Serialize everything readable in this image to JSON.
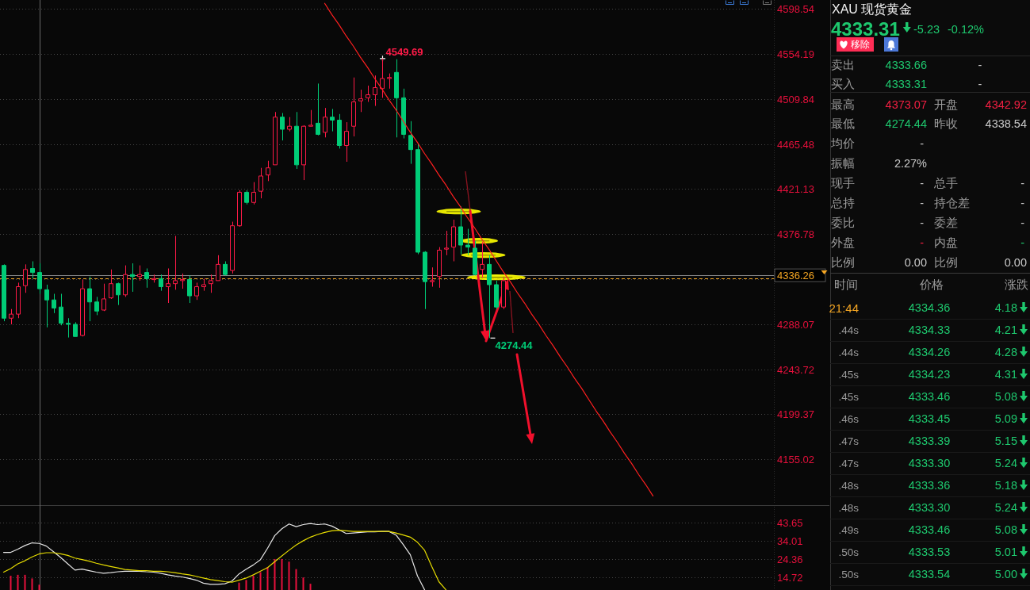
{
  "chart_data": [
    {
      "type": "candlestick",
      "categories": [
        null,
        null,
        null,
        null,
        null,
        null,
        null,
        null,
        null,
        null,
        null,
        null,
        null,
        null,
        null,
        null,
        null,
        null,
        null,
        null,
        null,
        null,
        null,
        null,
        null,
        null,
        null,
        null,
        null,
        null,
        null,
        null,
        null,
        null,
        null,
        null,
        null,
        null,
        null,
        null,
        null,
        null,
        null,
        null,
        null,
        null,
        null,
        null,
        null,
        null,
        null,
        null,
        null,
        null,
        null,
        null,
        null,
        null,
        null,
        null,
        null,
        null,
        null,
        null,
        null,
        null,
        null,
        null,
        null,
        null,
        null,
        null,
        null,
        null,
        null,
        null,
        null,
        null,
        null,
        null,
        null,
        null,
        null,
        null,
        null,
        null,
        null,
        null,
        null,
        null,
        null,
        null,
        null,
        null,
        null,
        null,
        null,
        null,
        null,
        null,
        null,
        null,
        null,
        null,
        null,
        null,
        null,
        null
      ],
      "ohlc": [
        [
          4346,
          4347,
          4291,
          4294
        ],
        [
          4294,
          4303,
          4288,
          4298
        ],
        [
          4298,
          4329,
          4294,
          4325
        ],
        [
          4326,
          4347,
          4319,
          4342
        ],
        [
          4343,
          4350,
          4333,
          4339
        ],
        [
          4339,
          4348,
          4318,
          4323
        ],
        [
          4322,
          4327,
          4285,
          4312
        ],
        [
          4312,
          4318,
          4299,
          4304
        ],
        [
          4305,
          4318,
          4287,
          4289
        ],
        [
          4289,
          4294,
          4275,
          4288
        ],
        [
          4288,
          4290,
          4276,
          4276
        ],
        [
          4277,
          4332,
          4276,
          4323
        ],
        [
          4323,
          4335,
          4291,
          4310
        ],
        [
          4310,
          4315,
          4297,
          4301
        ],
        [
          4302,
          4328,
          4301,
          4313
        ],
        [
          4314,
          4342,
          4313,
          4328
        ],
        [
          4328,
          4329,
          4307,
          4317
        ],
        [
          4317,
          4346,
          4315,
          4337
        ],
        [
          4337,
          4348,
          4320,
          4335
        ],
        [
          4335,
          4346,
          4331,
          4337
        ],
        [
          4339,
          4343,
          4324,
          4333
        ],
        [
          4332,
          4337,
          4329,
          4333
        ],
        [
          4333,
          4337,
          4321,
          4325
        ],
        [
          4325,
          4343,
          4309,
          4328
        ],
        [
          4328,
          4375,
          4322,
          4331
        ],
        [
          4331,
          4338,
          4323,
          4332
        ],
        [
          4332,
          4336,
          4309,
          4316
        ],
        [
          4316,
          4329,
          4312,
          4325
        ],
        [
          4325,
          4333,
          4321,
          4327
        ],
        [
          4328,
          4337,
          4319,
          4331
        ],
        [
          4331,
          4356,
          4331,
          4347
        ],
        [
          4347,
          4350,
          4336,
          4337
        ],
        [
          4341,
          4389,
          4338,
          4385
        ],
        [
          4385,
          4420,
          4384,
          4418
        ],
        [
          4418,
          4420,
          4406,
          4408
        ],
        [
          4408,
          4428,
          4406,
          4418
        ],
        [
          4419,
          4442,
          4412,
          4434
        ],
        [
          4435,
          4449,
          4429,
          4442
        ],
        [
          4445,
          4497,
          4445,
          4492
        ],
        [
          4492,
          4496,
          4469,
          4480
        ],
        [
          4480,
          4492,
          4478,
          4483
        ],
        [
          4483,
          4497,
          4441,
          4445
        ],
        [
          4445,
          4484,
          4430,
          4483
        ],
        [
          4483,
          4499,
          4483,
          4484
        ],
        [
          4486,
          4525,
          4474,
          4475
        ],
        [
          4477,
          4501,
          4472,
          4492
        ],
        [
          4492,
          4500,
          4478,
          4489
        ],
        [
          4489,
          4495,
          4461,
          4464
        ],
        [
          4464,
          4487,
          4448,
          4478
        ],
        [
          4483,
          4531,
          4473,
          4507
        ],
        [
          4508,
          4519,
          4497,
          4510
        ],
        [
          4511,
          4523,
          4507,
          4514
        ],
        [
          4514,
          4533,
          4503,
          4521
        ],
        [
          4520,
          4549.69,
          4511,
          4530
        ],
        [
          4530,
          4535,
          4520,
          4531
        ],
        [
          4536,
          4549,
          4472,
          4511
        ],
        [
          4511,
          4520,
          4471,
          4475
        ],
        [
          4474,
          4488,
          4446,
          4460
        ],
        [
          4460,
          4466,
          4357,
          4359
        ],
        [
          4359,
          4360,
          4303,
          4330
        ],
        [
          4330,
          4344,
          4325,
          4331
        ],
        [
          4335,
          4364,
          4324,
          4361
        ],
        [
          4362,
          4380,
          4356,
          4363
        ],
        [
          4364,
          4391,
          4350,
          4384
        ],
        [
          4384,
          4404,
          4357,
          4366
        ],
        [
          4366,
          4382,
          4356,
          4364
        ],
        [
          4363,
          4370,
          4336,
          4337
        ],
        [
          4342,
          4369,
          4334,
          4347
        ],
        [
          4347,
          4356,
          4274.44,
          4327
        ],
        [
          4327,
          4331,
          4303,
          4305
        ],
        [
          4305,
          4335,
          4303,
          4331
        ],
        null,
        null,
        null,
        null,
        null,
        null,
        null,
        null,
        null,
        null,
        null,
        null,
        null,
        null,
        null,
        null,
        null,
        null,
        null,
        null,
        null,
        null,
        null,
        null,
        null,
        null,
        null,
        null,
        null,
        null,
        null,
        null,
        null,
        null,
        null,
        null,
        null
      ],
      "series": [
        {
          "type": "line",
          "color": "#ff2020",
          "values": [
            null,
            null,
            null,
            null,
            null,
            null,
            null,
            null,
            null,
            null,
            null,
            null,
            null,
            null,
            null,
            null,
            null,
            null,
            null,
            null,
            null,
            null,
            null,
            null,
            null,
            null,
            null,
            null,
            null,
            null,
            null,
            null,
            null,
            null,
            null,
            null,
            null,
            null,
            null,
            null,
            null,
            null,
            null,
            null,
            null,
            4604,
            4593,
            4583,
            4572,
            4562,
            4551,
            4541,
            4530,
            4520,
            4509,
            4499,
            4488,
            4477,
            4467,
            4456,
            4446,
            4435,
            4425,
            4414,
            4404,
            4393,
            4383,
            4372,
            4362,
            4351,
            4340,
            4330,
            4319,
            4309,
            4298,
            4288,
            4277,
            4267,
            4256,
            4246,
            4235,
            4225,
            4214,
            4203,
            4193,
            4182,
            4172,
            4161,
            4151,
            4140,
            4130,
            4119,
            null,
            null,
            null,
            null,
            null,
            null,
            null,
            null,
            null,
            null,
            null,
            null,
            null,
            null,
            null,
            null
          ]
        }
      ],
      "ylim": [
        4110.7,
        4607.3
      ],
      "yticks": [
        4598.54,
        4554.19,
        4509.84,
        4465.48,
        4421.13,
        4376.78,
        {
          "value": 4332.43,
          "label": null
        },
        4288.07,
        4243.72,
        4199.37,
        4155.02
      ],
      "grid": "y",
      "tick_labels": "y",
      "ref_lines": [
        {
          "axis": "y",
          "value": 4333.31,
          "color": "#f5a623",
          "line_style": "dashed"
        },
        {
          "axis": "y",
          "value": 4336.26,
          "label": "4336.26",
          "color": "#8a8a8a"
        }
      ],
      "annotations": [
        "4549.69",
        "4274.44"
      ]
    },
    {
      "type": "line",
      "categories": [
        null,
        null,
        null,
        null,
        null,
        null,
        null,
        null,
        null,
        null,
        null,
        null,
        null,
        null,
        null,
        null,
        null,
        null,
        null,
        null,
        null,
        null,
        null,
        null,
        null,
        null,
        null,
        null,
        null,
        null,
        null,
        null,
        null,
        null,
        null,
        null,
        null,
        null,
        null,
        null,
        null,
        null,
        null,
        null,
        null,
        null,
        null,
        null,
        null,
        null,
        null,
        null,
        null,
        null,
        null,
        null,
        null,
        null,
        null,
        null,
        null,
        null,
        null,
        null,
        null,
        null,
        null,
        null,
        null,
        null,
        null,
        null,
        null,
        null,
        null,
        null,
        null,
        null,
        null,
        null,
        null,
        null,
        null,
        null,
        null,
        null,
        null,
        null,
        null,
        null,
        null,
        null,
        null,
        null,
        null,
        null,
        null,
        null,
        null,
        null,
        null,
        null,
        null,
        null,
        null,
        null,
        null,
        null
      ],
      "series": [
        {
          "type": "bar",
          "color": "#e8103c",
          "values": [
            null,
            15.6,
            16.1,
            16.1,
            14.2,
            10.9,
            null,
            null,
            null,
            null,
            null,
            null,
            null,
            null,
            null,
            null,
            null,
            null,
            null,
            null,
            null,
            null,
            null,
            null,
            null,
            null,
            null,
            null,
            null,
            null,
            null,
            null,
            null,
            12.0,
            13.4,
            15.6,
            17.5,
            20.2,
            24.4,
            24.4,
            23.0,
            19.1,
            14.7,
            11.4,
            null,
            null,
            null,
            null,
            null,
            null,
            null,
            null,
            null,
            null,
            null,
            null,
            null,
            null,
            null,
            null,
            null,
            null,
            null,
            null,
            null,
            null,
            null,
            null,
            null,
            null,
            null,
            null,
            null,
            null,
            null,
            null,
            null,
            null,
            null,
            null,
            null,
            null,
            null,
            null,
            null,
            null,
            null,
            null,
            null,
            null,
            null,
            null,
            null,
            null,
            null,
            null,
            null,
            null,
            null,
            null,
            null,
            null,
            null,
            null,
            null,
            null,
            null,
            null
          ]
        },
        {
          "color": "#e6e6e6",
          "values": [
            27.9,
            27.9,
            29.6,
            31.5,
            32.9,
            32.6,
            31.2,
            28.2,
            25.2,
            21.9,
            18.6,
            19.1,
            18.3,
            17.5,
            16.9,
            17.2,
            17.7,
            18.0,
            18.0,
            18.0,
            17.7,
            17.5,
            16.9,
            16.1,
            15.5,
            15.0,
            14.2,
            13.3,
            11.7,
            11.1,
            11.1,
            11.4,
            12.8,
            16.6,
            19.1,
            21.3,
            24.1,
            30.1,
            36.7,
            40.3,
            42.8,
            41.4,
            42.5,
            43.1,
            42.5,
            42.8,
            41.7,
            39.8,
            37.8,
            38.1,
            38.4,
            38.7,
            38.7,
            38.9,
            38.9,
            37.0,
            32.0,
            26.6,
            15.5,
            8.2,
            null,
            null,
            null,
            null,
            null,
            null,
            null,
            null,
            null,
            null,
            null,
            null,
            null,
            null,
            null,
            null,
            null,
            null,
            null,
            null,
            null,
            null,
            null,
            null,
            null,
            null,
            null,
            null,
            null,
            null,
            null,
            null,
            null,
            null,
            null,
            null,
            null,
            null,
            null,
            null,
            null,
            null,
            null,
            null,
            null,
            null,
            null,
            null
          ]
        },
        {
          "color": "#e6dc00",
          "values": [
            17.5,
            19.4,
            21.9,
            23.5,
            25.5,
            27.1,
            27.7,
            27.7,
            27.1,
            26.3,
            24.9,
            24.1,
            23.3,
            22.2,
            21.3,
            20.5,
            19.7,
            18.9,
            18.6,
            18.3,
            18.3,
            18.0,
            18.0,
            17.7,
            17.2,
            16.6,
            16.1,
            15.3,
            14.4,
            13.6,
            13.1,
            12.5,
            12.2,
            13.3,
            14.4,
            16.1,
            18.0,
            19.9,
            23.0,
            26.0,
            29.0,
            31.8,
            34.0,
            35.9,
            37.3,
            38.4,
            39.2,
            39.5,
            39.2,
            38.9,
            38.9,
            38.9,
            38.9,
            38.9,
            38.9,
            38.1,
            37.0,
            35.9,
            33.2,
            29.0,
            20.5,
            12.5,
            8.2,
            null,
            null,
            null,
            null,
            null,
            null,
            null,
            null,
            null,
            null,
            null,
            null,
            null,
            null,
            null,
            null,
            null,
            null,
            null,
            null,
            null,
            null,
            null,
            null,
            null,
            null,
            null,
            null,
            null,
            null,
            null,
            null,
            null,
            null,
            null,
            null,
            null,
            null,
            null,
            null,
            null,
            null,
            null,
            null,
            null
          ]
        }
      ],
      "ylim": [
        8.12,
        51.87
      ],
      "yticks": [
        43.65,
        34.01,
        24.36,
        14.72
      ],
      "grid": "y",
      "tick_labels": "y"
    },
    {
      "type": "other",
      "title": "XAU 现货黄金",
      "annotations": [
        "4333.31",
        "-5.23",
        "-0.12%",
        "移除",
        "卖出",
        "4333.66",
        "-",
        "买入",
        "4333.31",
        "-",
        "最高",
        "4373.07",
        "开盘",
        "4342.92",
        "最低",
        "4274.44",
        "昨收",
        "4338.54",
        "均价",
        "-",
        "振幅",
        "2.27%",
        "现手",
        "-",
        "总手",
        "-",
        "总持",
        "-",
        "持仓差",
        "-",
        "委比",
        "-",
        "委差",
        "-",
        "外盘",
        "-",
        "内盘",
        "-",
        "比例",
        "0.00",
        "比例",
        "0.00",
        "时间",
        "价格",
        "涨跌",
        "21:44",
        "4334.36",
        "4.18",
        ".44s",
        "4334.33",
        "4.21",
        ".44s",
        "4334.26",
        "4.28",
        ".45s",
        "4334.23",
        "4.31",
        ".45s",
        "4333.46",
        "5.08",
        ".46s",
        "4333.45",
        "5.09",
        ".47s",
        "4333.39",
        "5.15",
        ".47s",
        "4333.30",
        "5.24",
        ".48s",
        "4333.36",
        "5.18",
        ".48s",
        "4333.30",
        "5.24",
        ".49s",
        "4333.46",
        "5.08",
        ".50s",
        "4333.53",
        "5.01",
        ".50s",
        "4333.54",
        "5.00"
      ]
    }
  ]
}
